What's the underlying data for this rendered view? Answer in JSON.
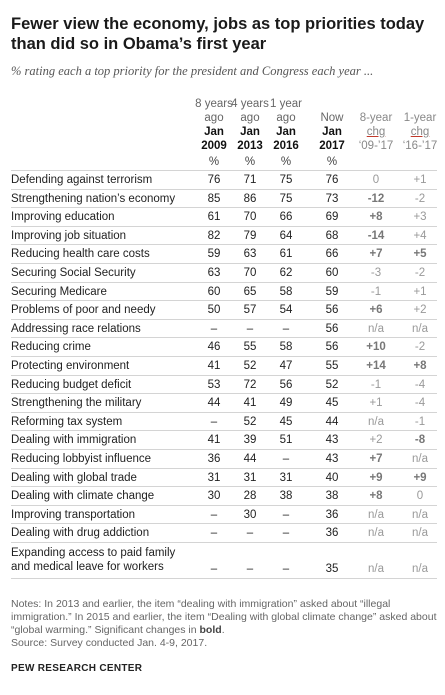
{
  "title": "Fewer view the economy, jobs as top priorities today than did so in Obama’s first year",
  "subtitle": "% rating each a top priority for the president and Congress each year ...",
  "chart_data": {
    "type": "table",
    "columns": [
      {
        "sub": "8 years ago",
        "year": "Jan 2009",
        "unit": "%"
      },
      {
        "sub": "4 years ago",
        "year": "Jan 2013",
        "unit": "%"
      },
      {
        "sub": "1 year ago",
        "year": "Jan 2016",
        "unit": "%"
      },
      {
        "sub": "Now",
        "year": "Jan 2017",
        "unit": "%"
      }
    ],
    "change_columns": [
      {
        "label": "8-year chg",
        "range": "‘09-’17"
      },
      {
        "label": "1-year chg",
        "range": "‘16-’17"
      }
    ],
    "rows": [
      {
        "label": "Defending against terrorism",
        "values": [
          "76",
          "71",
          "75",
          "76"
        ],
        "chg8": "0",
        "chg8_bold": false,
        "chg1": "+1",
        "chg1_bold": false
      },
      {
        "label": "Strengthening nation’s economy",
        "values": [
          "85",
          "86",
          "75",
          "73"
        ],
        "chg8": "-12",
        "chg8_bold": true,
        "chg1": "-2",
        "chg1_bold": false
      },
      {
        "label": "Improving education",
        "values": [
          "61",
          "70",
          "66",
          "69"
        ],
        "chg8": "+8",
        "chg8_bold": true,
        "chg1": "+3",
        "chg1_bold": false
      },
      {
        "label": "Improving job situation",
        "values": [
          "82",
          "79",
          "64",
          "68"
        ],
        "chg8": "-14",
        "chg8_bold": true,
        "chg1": "+4",
        "chg1_bold": false
      },
      {
        "label": "Reducing health care costs",
        "values": [
          "59",
          "63",
          "61",
          "66"
        ],
        "chg8": "+7",
        "chg8_bold": true,
        "chg1": "+5",
        "chg1_bold": true
      },
      {
        "label": "Securing Social Security",
        "values": [
          "63",
          "70",
          "62",
          "60"
        ],
        "chg8": "-3",
        "chg8_bold": false,
        "chg1": "-2",
        "chg1_bold": false
      },
      {
        "label": "Securing Medicare",
        "values": [
          "60",
          "65",
          "58",
          "59"
        ],
        "chg8": "-1",
        "chg8_bold": false,
        "chg1": "+1",
        "chg1_bold": false
      },
      {
        "label": "Problems of poor and needy",
        "values": [
          "50",
          "57",
          "54",
          "56"
        ],
        "chg8": "+6",
        "chg8_bold": true,
        "chg1": "+2",
        "chg1_bold": false
      },
      {
        "label": "Addressing race relations",
        "values": [
          "–",
          "–",
          "–",
          "56"
        ],
        "chg8": "n/a",
        "chg8_bold": false,
        "chg1": "n/a",
        "chg1_bold": false
      },
      {
        "label": "Reducing crime",
        "values": [
          "46",
          "55",
          "58",
          "56"
        ],
        "chg8": "+10",
        "chg8_bold": true,
        "chg1": "-2",
        "chg1_bold": false
      },
      {
        "label": "Protecting environment",
        "values": [
          "41",
          "52",
          "47",
          "55"
        ],
        "chg8": "+14",
        "chg8_bold": true,
        "chg1": "+8",
        "chg1_bold": true
      },
      {
        "label": "Reducing budget deficit",
        "values": [
          "53",
          "72",
          "56",
          "52"
        ],
        "chg8": "-1",
        "chg8_bold": false,
        "chg1": "-4",
        "chg1_bold": false
      },
      {
        "label": "Strengthening the military",
        "values": [
          "44",
          "41",
          "49",
          "45"
        ],
        "chg8": "+1",
        "chg8_bold": false,
        "chg1": "-4",
        "chg1_bold": false
      },
      {
        "label": "Reforming tax system",
        "values": [
          "–",
          "52",
          "45",
          "44"
        ],
        "chg8": "n/a",
        "chg8_bold": false,
        "chg1": "-1",
        "chg1_bold": false
      },
      {
        "label": "Dealing with immigration",
        "values": [
          "41",
          "39",
          "51",
          "43"
        ],
        "chg8": "+2",
        "chg8_bold": false,
        "chg1": "-8",
        "chg1_bold": true
      },
      {
        "label": "Reducing lobbyist influence",
        "values": [
          "36",
          "44",
          "–",
          "43"
        ],
        "chg8": "+7",
        "chg8_bold": true,
        "chg1": "n/a",
        "chg1_bold": false
      },
      {
        "label": "Dealing with global trade",
        "values": [
          "31",
          "31",
          "31",
          "40"
        ],
        "chg8": "+9",
        "chg8_bold": true,
        "chg1": "+9",
        "chg1_bold": true
      },
      {
        "label": "Dealing with climate change",
        "values": [
          "30",
          "28",
          "38",
          "38"
        ],
        "chg8": "+8",
        "chg8_bold": true,
        "chg1": "0",
        "chg1_bold": false
      },
      {
        "label": "Improving transportation",
        "values": [
          "–",
          "30",
          "–",
          "36"
        ],
        "chg8": "n/a",
        "chg8_bold": false,
        "chg1": "n/a",
        "chg1_bold": false
      },
      {
        "label": "Dealing with drug addiction",
        "values": [
          "–",
          "–",
          "–",
          "36"
        ],
        "chg8": "n/a",
        "chg8_bold": false,
        "chg1": "n/a",
        "chg1_bold": false
      },
      {
        "label": "Expanding access to paid family and medical leave for workers",
        "values": [
          "–",
          "–",
          "–",
          "35"
        ],
        "chg8": "n/a",
        "chg8_bold": false,
        "chg1": "n/a",
        "chg1_bold": false
      }
    ]
  },
  "notes": {
    "main": "Notes: In 2013 and earlier, the item “dealing with immigration” asked about “illegal immigration.” In 2015 and earlier, the item “Dealing with global climate change” asked about “global warming.” Significant changes in ",
    "bold_word": "bold",
    "end": ".",
    "source": "Source: Survey conducted Jan. 4-9, 2017."
  },
  "credit": "PEW RESEARCH CENTER"
}
